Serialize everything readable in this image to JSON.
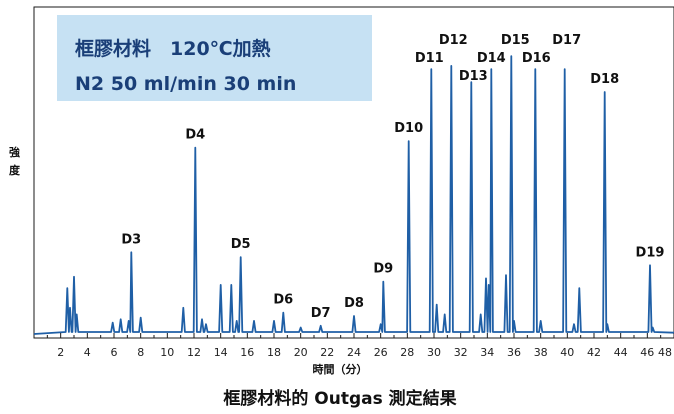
{
  "chart_data": {
    "type": "line",
    "title": "框膠材料的 Outgas 測定結果",
    "xlabel": "時間（分）",
    "ylabel": "強度",
    "xlim": [
      0,
      48
    ],
    "ylim": [
      0,
      100
    ],
    "x_ticks": [
      "2",
      "4",
      "6",
      "8",
      "10",
      "12",
      "14",
      "16",
      "18",
      "20",
      "22",
      "24",
      "26",
      "28",
      "30",
      "32",
      "34",
      "36",
      "38",
      "40",
      "42",
      "44",
      "46",
      "48"
    ],
    "line_color": "#1f5fa6",
    "condition_box": {
      "line1": "框膠材料　120℃加熱",
      "line2": "N2 50 ml/min 30 min"
    },
    "peaks": [
      {
        "label": "D3",
        "x": 7.3,
        "y": 25
      },
      {
        "label": "D4",
        "x": 12.1,
        "y": 57
      },
      {
        "label": "D5",
        "x": 15.5,
        "y": 23.5
      },
      {
        "label": "D6",
        "x": 18.7,
        "y": 6.5
      },
      {
        "label": "D7",
        "x": 21.5,
        "y": 2.5
      },
      {
        "label": "D8",
        "x": 24.0,
        "y": 5.5
      },
      {
        "label": "D9",
        "x": 26.2,
        "y": 16
      },
      {
        "label": "D10",
        "x": 28.1,
        "y": 59
      },
      {
        "label": "D11",
        "x": 29.8,
        "y": 81
      },
      {
        "label": "D12",
        "x": 31.3,
        "y": 82
      },
      {
        "label": "D13",
        "x": 32.8,
        "y": 77
      },
      {
        "label": "D14",
        "x": 34.3,
        "y": 81
      },
      {
        "label": "D15",
        "x": 35.8,
        "y": 85
      },
      {
        "label": "D16",
        "x": 37.6,
        "y": 81
      },
      {
        "label": "D17",
        "x": 39.8,
        "y": 81
      },
      {
        "label": "D18",
        "x": 42.8,
        "y": 74
      },
      {
        "label": "D19",
        "x": 46.2,
        "y": 21
      }
    ],
    "minor_peaks": [
      {
        "x": 2.5,
        "y": 14
      },
      {
        "x": 2.7,
        "y": 8
      },
      {
        "x": 3.0,
        "y": 17.5
      },
      {
        "x": 3.2,
        "y": 6
      },
      {
        "x": 5.9,
        "y": 3.5
      },
      {
        "x": 6.5,
        "y": 4.5
      },
      {
        "x": 7.1,
        "y": 4
      },
      {
        "x": 8.0,
        "y": 5
      },
      {
        "x": 11.2,
        "y": 8
      },
      {
        "x": 12.6,
        "y": 4.5
      },
      {
        "x": 12.9,
        "y": 3
      },
      {
        "x": 14.0,
        "y": 15
      },
      {
        "x": 14.8,
        "y": 15
      },
      {
        "x": 15.2,
        "y": 4
      },
      {
        "x": 16.5,
        "y": 4
      },
      {
        "x": 18.0,
        "y": 4
      },
      {
        "x": 20.0,
        "y": 2
      },
      {
        "x": 26.0,
        "y": 3
      },
      {
        "x": 30.2,
        "y": 9
      },
      {
        "x": 30.8,
        "y": 6
      },
      {
        "x": 33.5,
        "y": 6
      },
      {
        "x": 33.9,
        "y": 17
      },
      {
        "x": 34.1,
        "y": 15
      },
      {
        "x": 35.4,
        "y": 18
      },
      {
        "x": 36.0,
        "y": 4
      },
      {
        "x": 38.0,
        "y": 4
      },
      {
        "x": 40.5,
        "y": 3
      },
      {
        "x": 40.9,
        "y": 14
      },
      {
        "x": 43.0,
        "y": 3
      },
      {
        "x": 46.4,
        "y": 2
      }
    ]
  }
}
